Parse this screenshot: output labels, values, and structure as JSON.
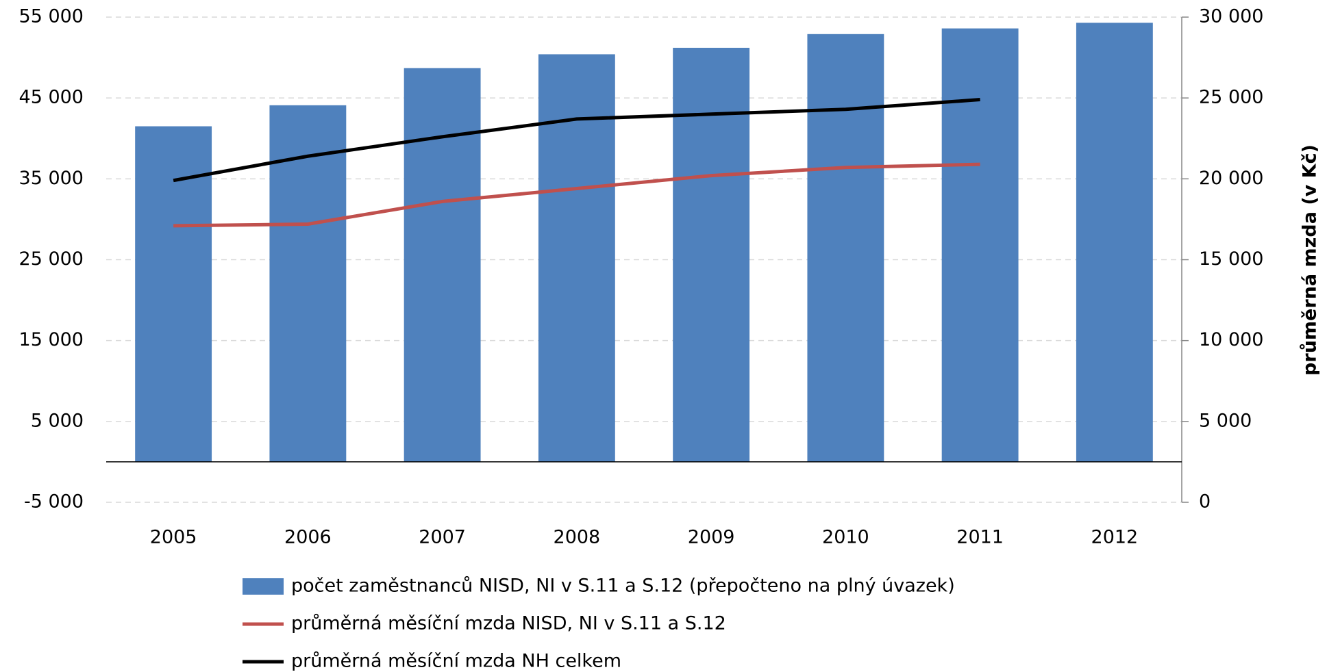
{
  "chart_data": {
    "type": "bar",
    "y2label": "průměrná mzda (v Kč)",
    "categories": [
      "2005",
      "2006",
      "2007",
      "2008",
      "2009",
      "2010",
      "2011",
      "2012"
    ],
    "series": [
      {
        "name": "počet zaměstnanců NISD, NI v S.11 a S.12 (přepočteno na plný úvazek)",
        "color": "#4f81bd",
        "type": "bar",
        "values": [
          41500,
          44100,
          48700,
          50400,
          51200,
          52900,
          53600,
          54300
        ]
      },
      {
        "name": "průměrná měsíční mzda NISD, NI v S.11 a S.12",
        "color": "#c0504d",
        "type": "line",
        "axis": "y2",
        "values": [
          17100,
          17200,
          18600,
          19400,
          20200,
          20700,
          20900,
          null
        ]
      },
      {
        "name": "průměrná měsíční mzda NH celkem",
        "color": "#000000",
        "type": "line",
        "axis": "y2",
        "values": [
          19900,
          21400,
          22600,
          23700,
          24000,
          24300,
          24900,
          null
        ]
      }
    ],
    "ylim": [
      -5000,
      55000
    ],
    "yticks": [
      {
        "value": -5000,
        "label": "-5 000"
      },
      {
        "value": 5000,
        "label": "5 000"
      },
      {
        "value": 15000,
        "label": "15 000"
      },
      {
        "value": 25000,
        "label": "25 000"
      },
      {
        "value": 35000,
        "label": "35 000"
      },
      {
        "value": 45000,
        "label": "45 000"
      },
      {
        "value": 55000,
        "label": "55 000"
      }
    ],
    "y2lim": [
      0,
      30000
    ],
    "y2ticks": [
      0,
      {
        "value": 5000,
        "label": "5 000"
      },
      {
        "value": 10000,
        "label": "10 000"
      },
      {
        "value": 15000,
        "label": "15 000"
      },
      {
        "value": 20000,
        "label": "20 000"
      },
      {
        "value": 25000,
        "label": "25 000"
      },
      {
        "value": 30000,
        "label": "30 000"
      }
    ],
    "grid": true
  }
}
